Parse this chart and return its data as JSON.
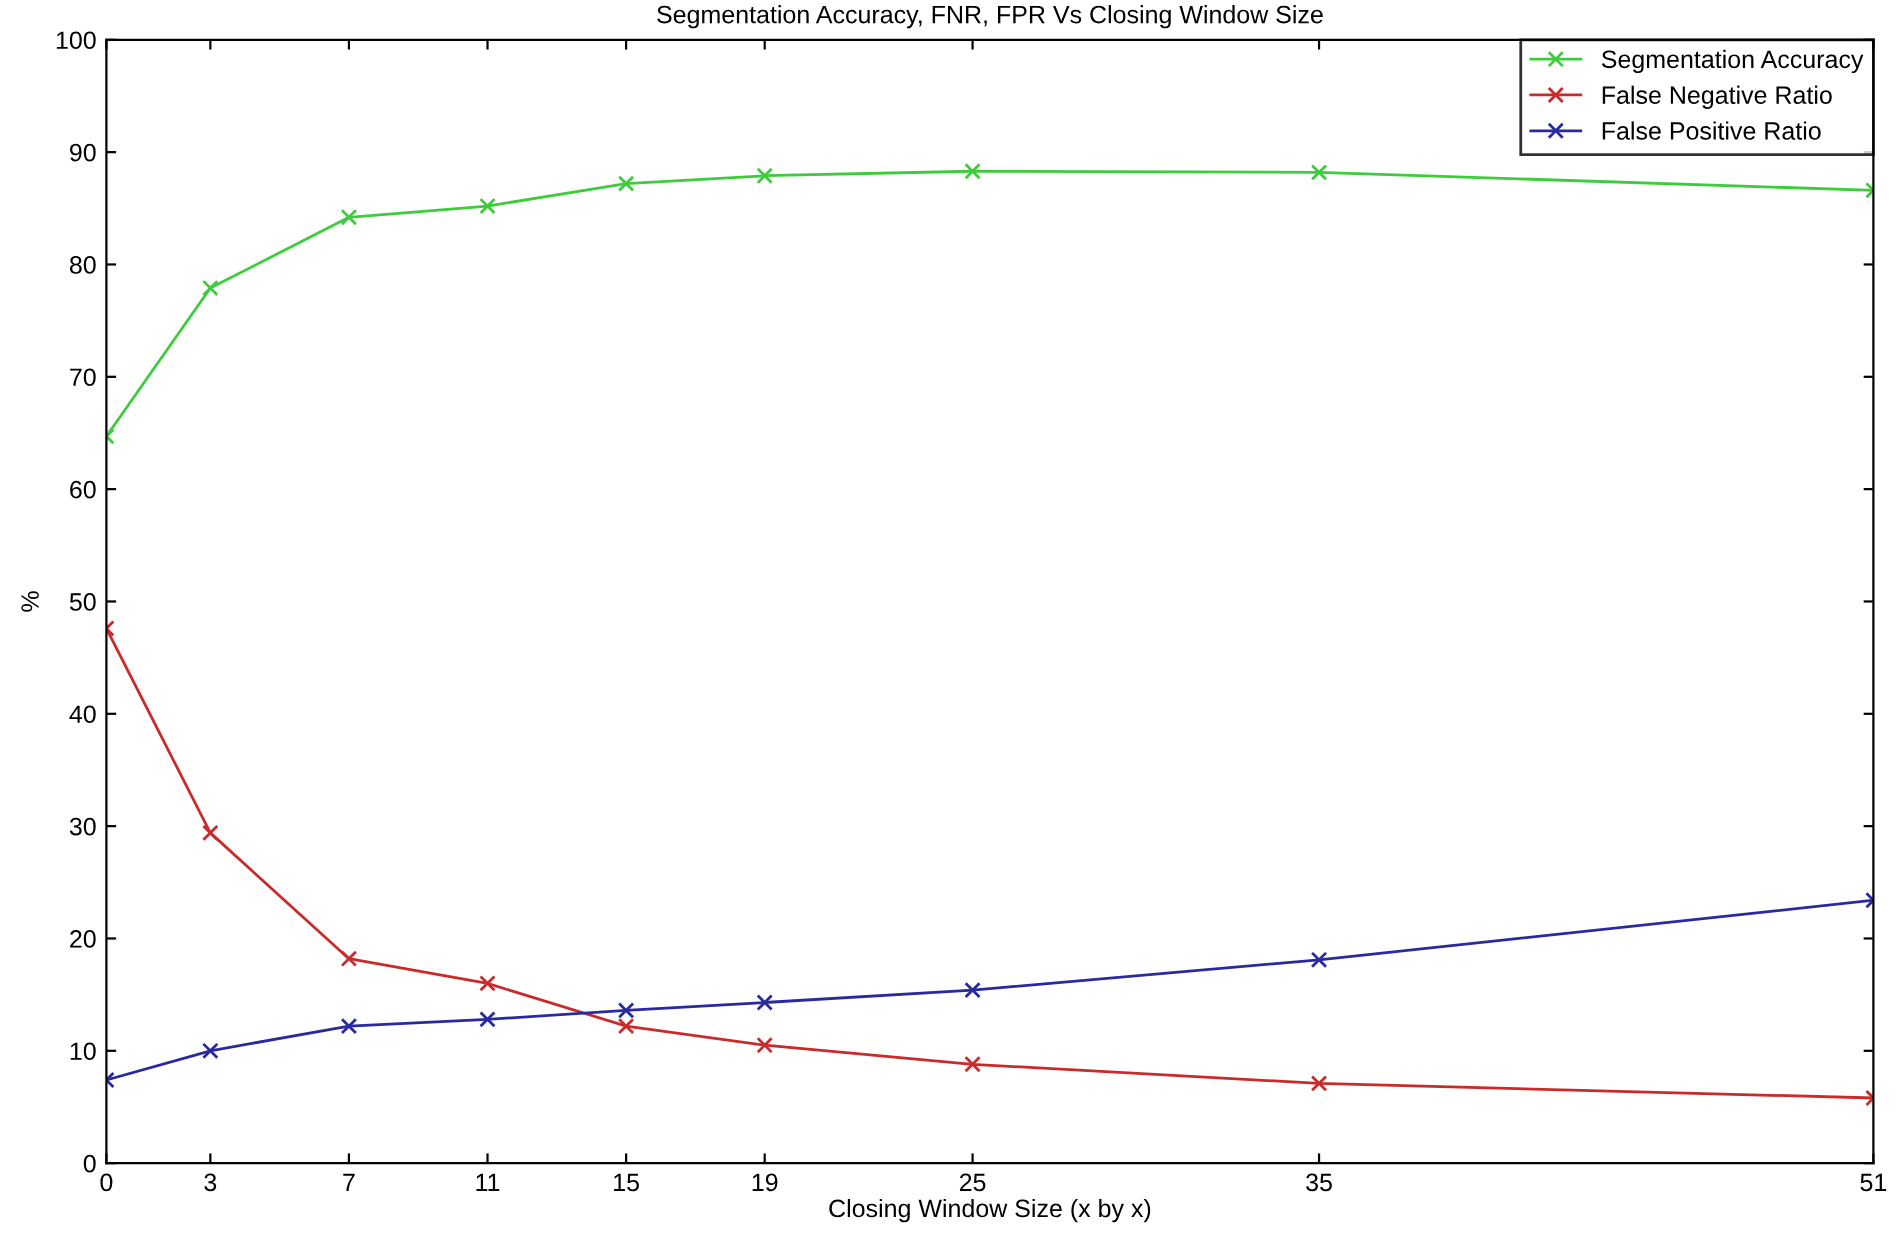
{
  "chart_data": {
    "type": "line",
    "title": "Segmentation Accuracy, FNR, FPR Vs Closing Window Size",
    "xlabel": "Closing Window Size (x by x)",
    "ylabel": "%",
    "x": [
      0,
      3,
      7,
      11,
      15,
      19,
      25,
      35,
      51
    ],
    "series": [
      {
        "name": "Segmentation Accuracy",
        "color": "#3ccc3c",
        "values": [
          64.7,
          77.9,
          84.2,
          85.2,
          87.2,
          87.9,
          88.3,
          88.2,
          86.6
        ]
      },
      {
        "name": "False Negative Ratio",
        "color": "#cc2a2a",
        "values": [
          47.6,
          29.4,
          18.2,
          16.0,
          12.2,
          10.5,
          8.8,
          7.1,
          5.8
        ]
      },
      {
        "name": "False Positive Ratio",
        "color": "#2a2aa0",
        "values": [
          7.4,
          10.0,
          12.2,
          12.8,
          13.6,
          14.3,
          15.4,
          18.1,
          23.4
        ]
      }
    ],
    "xlim": [
      0,
      51
    ],
    "xticks": [
      0,
      3,
      7,
      11,
      15,
      19,
      25,
      35,
      51
    ],
    "ylim": [
      0,
      100
    ],
    "yticks": [
      0,
      10,
      20,
      30,
      40,
      50,
      60,
      70,
      80,
      90,
      100
    ],
    "grid": false,
    "legend": "top right",
    "marker": "cross",
    "line_style": "solid"
  }
}
